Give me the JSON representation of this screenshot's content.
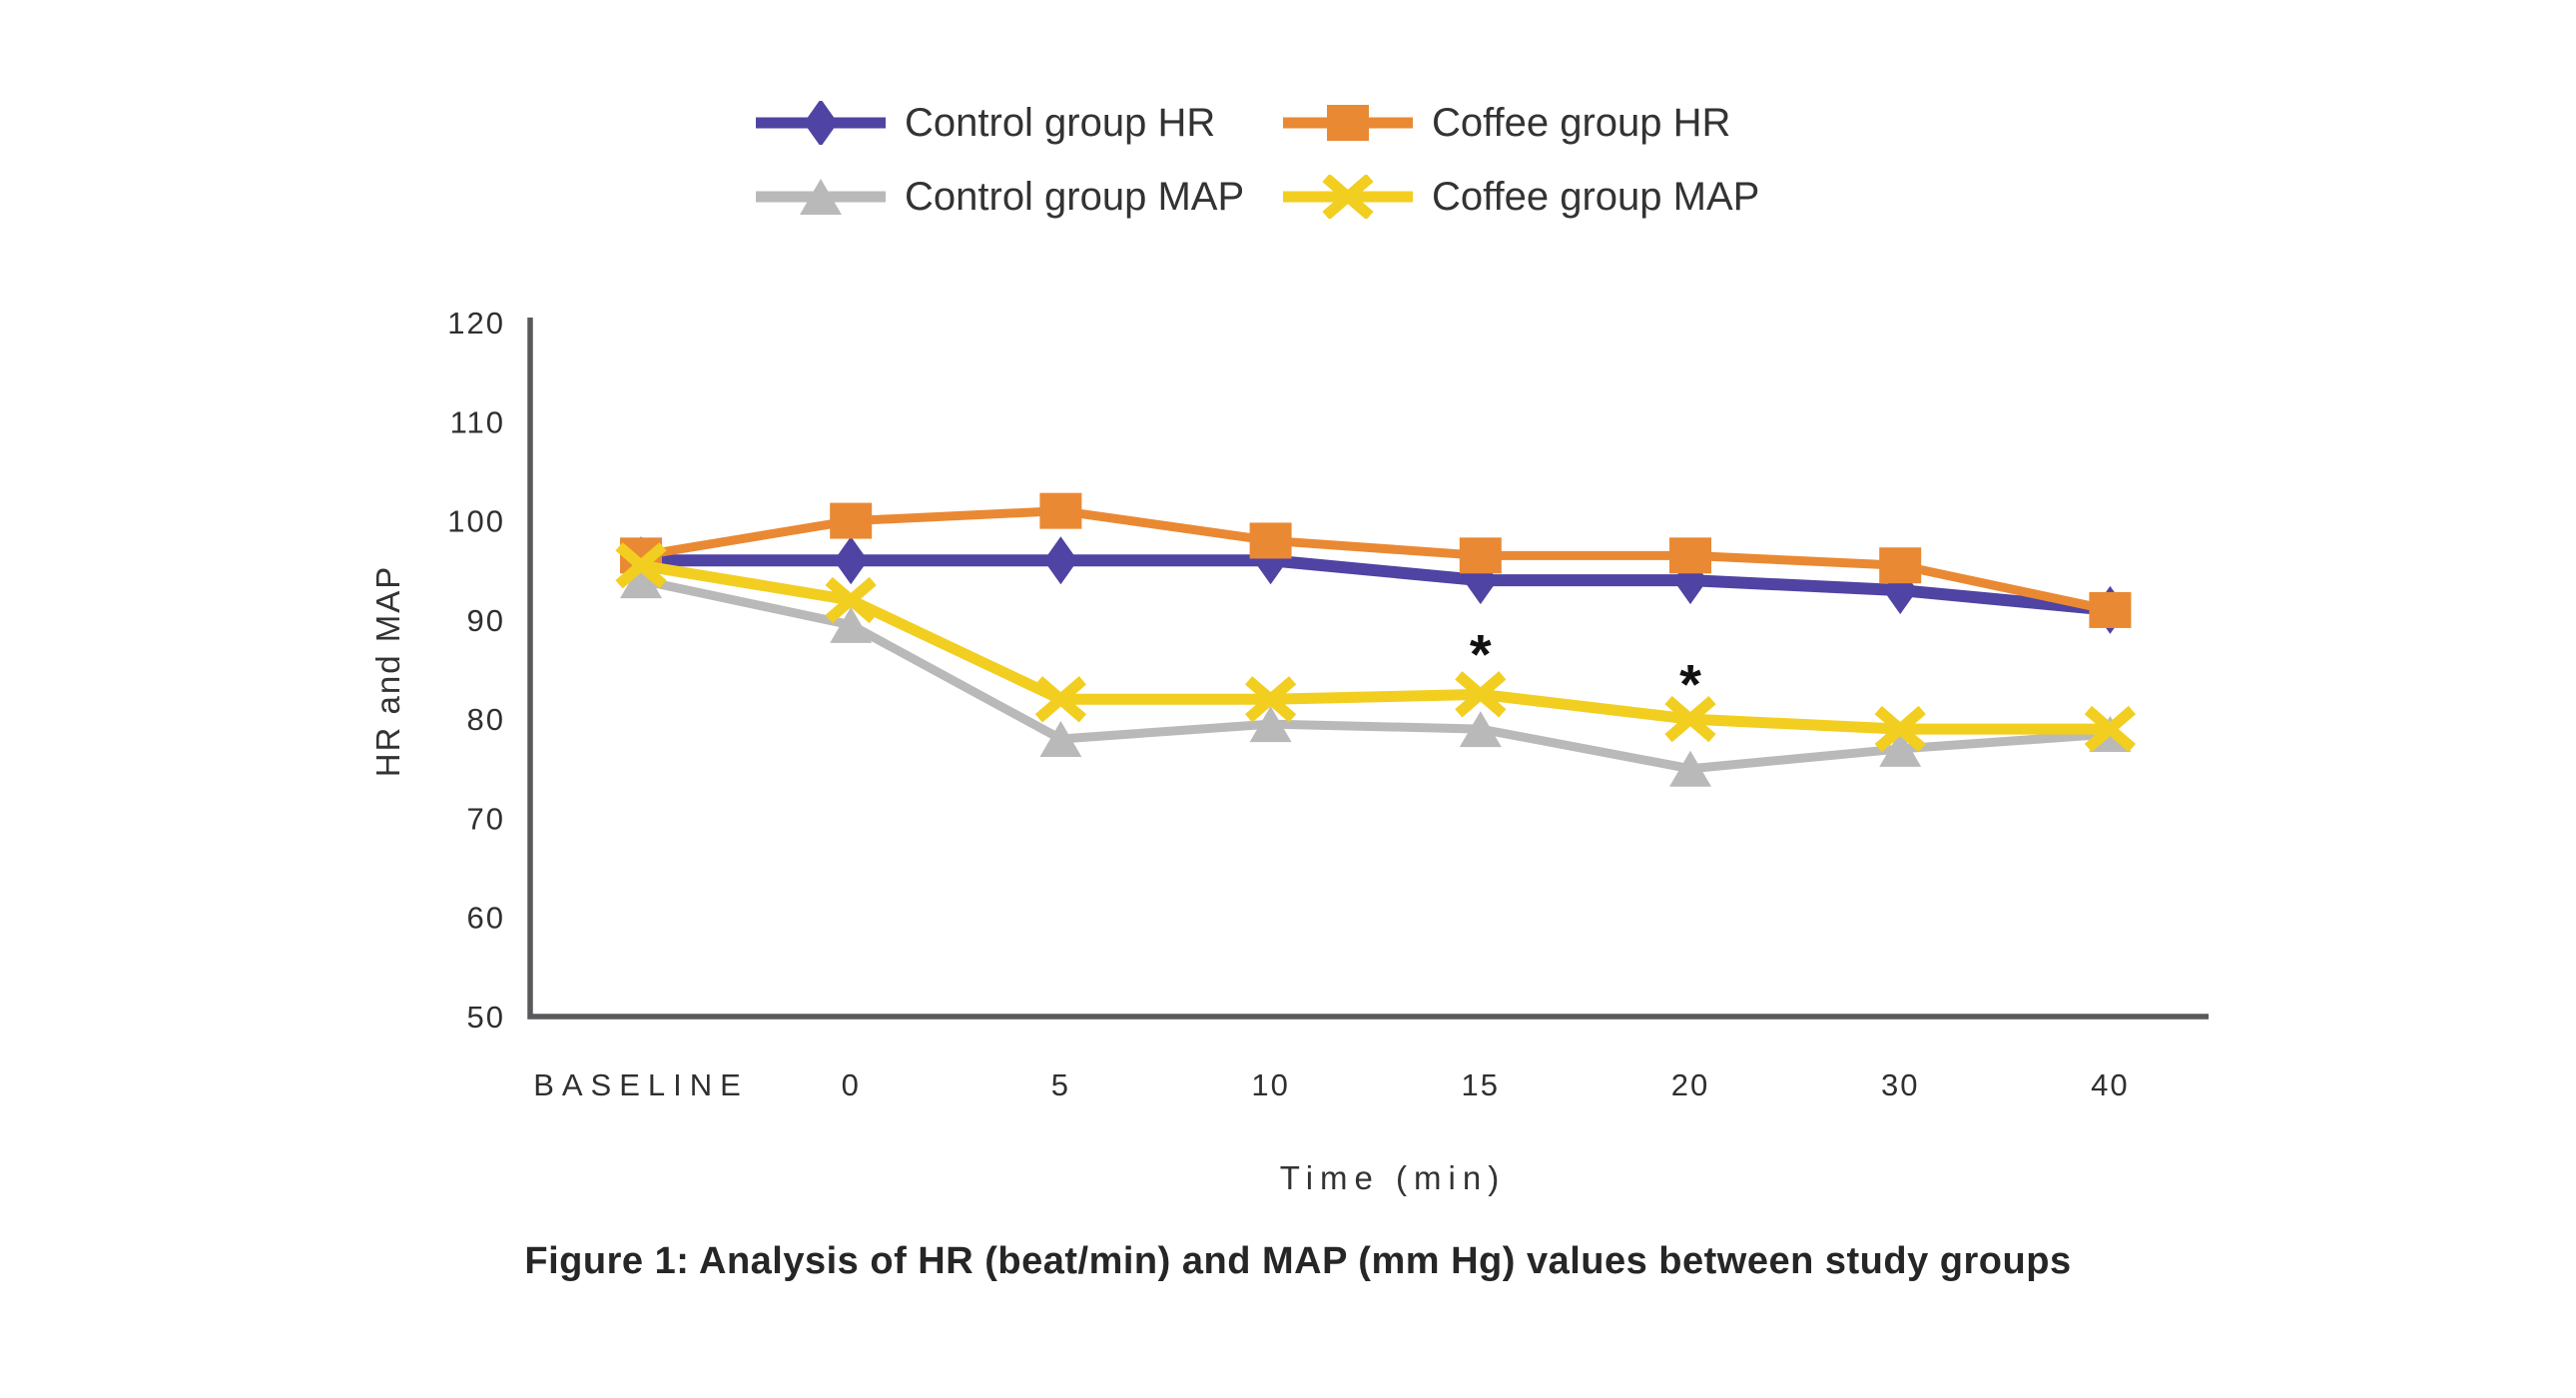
{
  "page": {
    "background": "#ffffff"
  },
  "title": {
    "text": "Figure 1: Analysis of HR (beat/min) and MAP (mm Hg) values between study groups"
  },
  "chart_data": {
    "type": "line",
    "categories": [
      "BASELINE",
      "0",
      "5",
      "10",
      "15",
      "20",
      "30",
      "40"
    ],
    "series": [
      {
        "name": "Control group HR",
        "marker": "diamond",
        "color": "#4F43A3",
        "line_width": 12,
        "values": [
          96,
          96,
          96,
          96,
          94,
          94,
          93,
          91
        ]
      },
      {
        "name": "Coffee group HR",
        "marker": "square",
        "color": "#EA8933",
        "line_width": 9,
        "values": [
          96.5,
          100,
          101,
          98,
          96.5,
          96.5,
          95.5,
          91
        ]
      },
      {
        "name": "Control group MAP",
        "marker": "triangle",
        "color": "#B9B9BA",
        "line_width": 9,
        "values": [
          94,
          89.5,
          78,
          79.5,
          79,
          75,
          77,
          78.5
        ]
      },
      {
        "name": "Coffee group MAP",
        "marker": "x",
        "color": "#F2CE20",
        "line_width": 11,
        "values": [
          95.5,
          92,
          82,
          82,
          82.5,
          80,
          79,
          79
        ]
      }
    ],
    "xlabel": "Time (min)",
    "ylabel": "HR and MAP",
    "ylim": [
      50,
      120
    ],
    "yticks": [
      120,
      110,
      100,
      90,
      80,
      70,
      60,
      50
    ],
    "grid": false,
    "legend_position": "top",
    "annotations": [
      {
        "text": "*",
        "series": "Coffee group MAP",
        "category_index": 4,
        "y_value": 87.5
      },
      {
        "text": "*",
        "series": "Coffee group MAP",
        "category_index": 5,
        "y_value": 84.5
      }
    ],
    "axis_color": "#58595B",
    "tick_text_color": "#2F2F2F",
    "annotation_color": "#111111"
  }
}
